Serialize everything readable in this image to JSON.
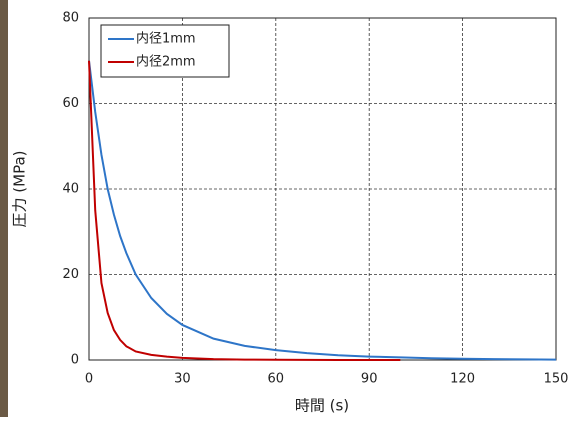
{
  "chart_data": {
    "type": "line",
    "x_label": "時間 (s)",
    "y_label": "圧力 (MPa)",
    "xlim": [
      0,
      150
    ],
    "xticks": [
      0,
      30,
      60,
      90,
      120,
      150
    ],
    "ylim": [
      0,
      80
    ],
    "yticks": [
      0,
      20,
      40,
      60,
      80
    ],
    "grid": true,
    "legend": "upper left",
    "series": [
      {
        "name": "内径1mm",
        "color": "#2e75c8",
        "x": [
          0,
          2,
          4,
          6,
          8,
          10,
          12,
          15,
          20,
          25,
          30,
          40,
          50,
          60,
          70,
          80,
          90,
          100,
          110,
          120,
          130,
          140,
          150
        ],
        "values": [
          70,
          58,
          48,
          40,
          34,
          29,
          25,
          20,
          14.5,
          10.8,
          8.2,
          5,
          3.3,
          2.3,
          1.6,
          1.1,
          0.8,
          0.6,
          0.4,
          0.3,
          0.2,
          0.15,
          0.1
        ]
      },
      {
        "name": "内径2mm",
        "color": "#c00000",
        "x": [
          0,
          2,
          4,
          6,
          8,
          10,
          12,
          15,
          20,
          25,
          30,
          40,
          50,
          60,
          70,
          80,
          90,
          100
        ],
        "values": [
          70,
          35,
          18,
          11,
          7,
          4.7,
          3.2,
          2,
          1.2,
          0.8,
          0.5,
          0.2,
          0.1,
          0.05,
          0.02,
          0.01,
          0.01,
          0
        ]
      }
    ]
  }
}
